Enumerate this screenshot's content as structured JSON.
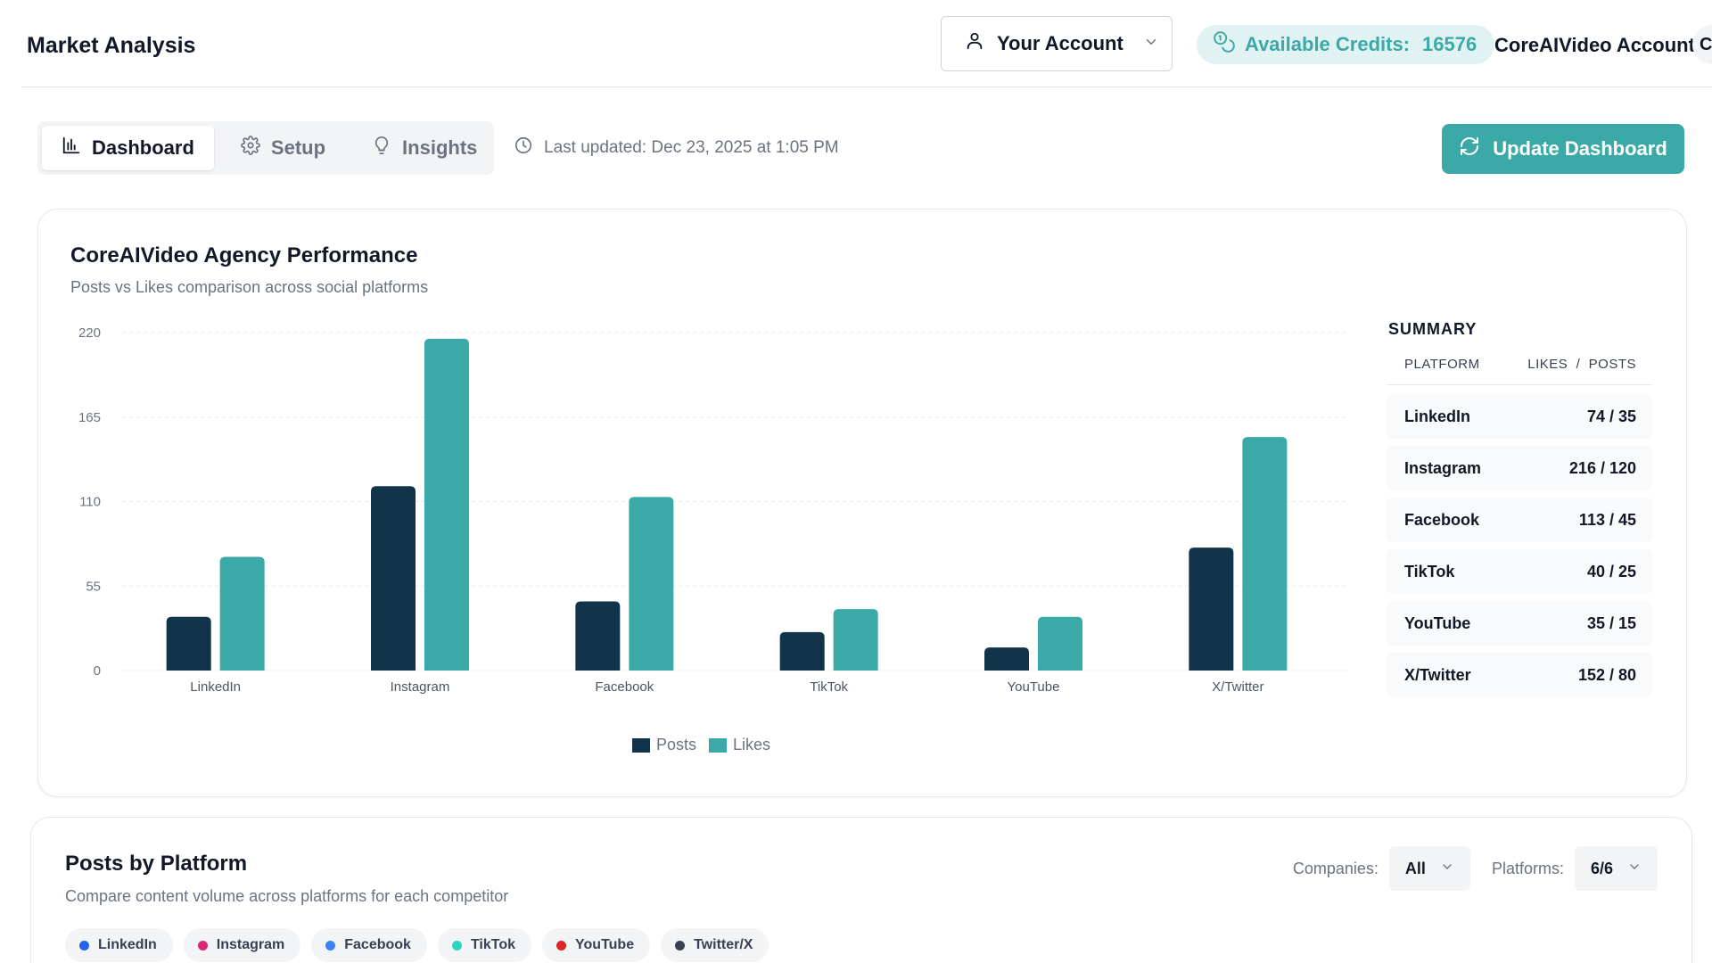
{
  "header": {
    "title": "Market Analysis",
    "account_label": "Your Account",
    "credits_label": "Available Credits:",
    "credits_value": "16576",
    "account_name": "CoreAIVideo Account",
    "avatar_text": "CA"
  },
  "toolbar": {
    "tabs": [
      {
        "label": "Dashboard",
        "icon": "bar-chart-icon",
        "active": true
      },
      {
        "label": "Setup",
        "icon": "gear-icon",
        "active": false
      },
      {
        "label": "Insights",
        "icon": "lightbulb-icon",
        "active": false
      }
    ],
    "last_updated": "Last updated: Dec 23, 2025 at 1:05 PM",
    "update_button": "Update Dashboard"
  },
  "performance": {
    "title": "CoreAIVideo Agency Performance",
    "subtitle": "Posts vs Likes comparison across social platforms",
    "summary": {
      "title": "SUMMARY",
      "col_platform": "PLATFORM",
      "col_values": "LIKES  /  POSTS",
      "rows": [
        {
          "platform": "LinkedIn",
          "value": "74 / 35"
        },
        {
          "platform": "Instagram",
          "value": "216 / 120"
        },
        {
          "platform": "Facebook",
          "value": "113 / 45"
        },
        {
          "platform": "TikTok",
          "value": "40 / 25"
        },
        {
          "platform": "YouTube",
          "value": "35 / 15"
        },
        {
          "platform": "X/Twitter",
          "value": "152 / 80"
        }
      ]
    }
  },
  "chart_data": {
    "type": "bar",
    "categories": [
      "LinkedIn",
      "Instagram",
      "Facebook",
      "TikTok",
      "YouTube",
      "X/Twitter"
    ],
    "series": [
      {
        "name": "Posts",
        "values": [
          35,
          120,
          45,
          25,
          15,
          80
        ],
        "color": "#12344a"
      },
      {
        "name": "Likes",
        "values": [
          74,
          216,
          113,
          40,
          35,
          152
        ],
        "color": "#3ba9a7"
      }
    ],
    "yticks": [
      0,
      55,
      110,
      165,
      220
    ],
    "ylim": [
      0,
      220
    ],
    "grid": true,
    "legend": "bottom-center"
  },
  "posts_by_platform": {
    "title": "Posts by Platform",
    "subtitle": "Compare content volume across platforms for each competitor",
    "companies_label": "Companies:",
    "companies_value": "All",
    "platforms_label": "Platforms:",
    "platforms_value": "6/6",
    "chips": [
      {
        "label": "LinkedIn",
        "color": "#2563eb"
      },
      {
        "label": "Instagram",
        "color": "#db2777"
      },
      {
        "label": "Facebook",
        "color": "#3b82f6"
      },
      {
        "label": "TikTok",
        "color": "#2dd4bf"
      },
      {
        "label": "YouTube",
        "color": "#dc2626"
      },
      {
        "label": "Twitter/X",
        "color": "#374151"
      }
    ]
  }
}
